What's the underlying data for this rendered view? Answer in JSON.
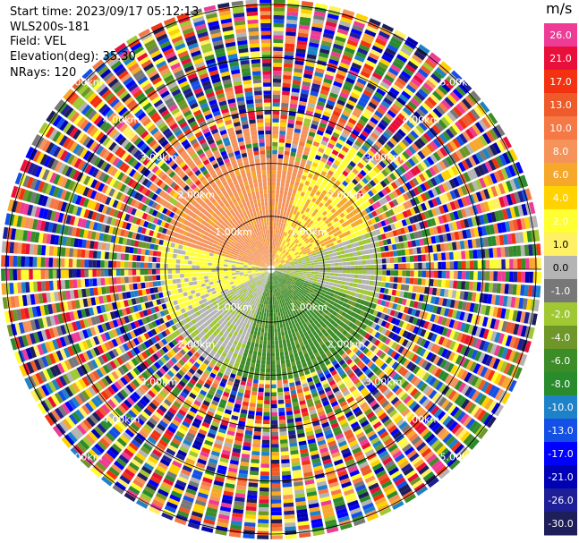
{
  "header": {
    "start_time": "Start time: 2023/09/17 05:12:13",
    "instrument": "WLS200s-181",
    "field": "Field: VEL",
    "elevation": "Elevation(deg): 35.30",
    "nrays": "NRays: 120"
  },
  "chart_data": {
    "type": "heatmap",
    "projection": "polar-ppi",
    "field": "VEL",
    "nrays": 120,
    "ring_labels": [
      "1.00km",
      "2.00km",
      "3.00km",
      "4.00km",
      "5.00km"
    ],
    "range_rings_km": [
      1,
      2,
      3,
      4,
      5
    ],
    "max_range_km": 5.1,
    "colorbar": {
      "unit": "m/s",
      "ticks": [
        "26.0",
        "21.0",
        "17.0",
        "13.0",
        "10.0",
        "8.0",
        "6.0",
        "4.0",
        "2.0",
        "1.0",
        "0.0",
        "-1.0",
        "-2.0",
        "-4.0",
        "-6.0",
        "-8.0",
        "-10.0",
        "-13.0",
        "-17.0",
        "-21.0",
        "-26.0",
        "-30.0"
      ],
      "colors": [
        "#ee3c96",
        "#e80f3a",
        "#f23210",
        "#ee5a2a",
        "#f57845",
        "#f5935a",
        "#f6a82b",
        "#ffd200",
        "#ffff32",
        "#fff064",
        "#b4b4b4",
        "#787878",
        "#a0c832",
        "#6e9628",
        "#3c8c28",
        "#288c2d",
        "#1e82c8",
        "#1450e6",
        "#0000ff",
        "#0000b4",
        "#1e1e96",
        "#1e1e5a"
      ]
    }
  }
}
